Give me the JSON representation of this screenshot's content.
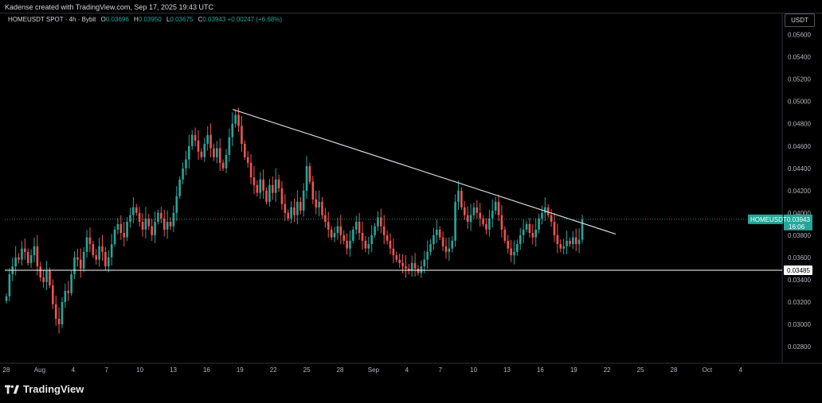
{
  "credit": "Kadense created with TradingView.com, Sep 17, 2025 19:43 UTC",
  "legend": {
    "symbol": "HOMEUSDT SPOT · 4h · Bybit",
    "o_label": "O",
    "o": "0.03696",
    "h_label": "H",
    "h": "0.03950",
    "l_label": "L",
    "l": "0.03675",
    "c_label": "C",
    "c": "0.03943",
    "change": "+0.00247 (+6.68%)"
  },
  "currency": "USDT",
  "brand": "TradingView",
  "colors": {
    "up": "#26a69a",
    "down": "#ef5350",
    "line": "#d1d4dc",
    "badge_bg": "#26a69a"
  },
  "chart_data": {
    "type": "candlestick",
    "symbol": "HOMEUSDT",
    "timeframe": "4h",
    "x_ticks": [
      "28",
      "Aug",
      "4",
      "7",
      "10",
      "13",
      "16",
      "19",
      "22",
      "25",
      "28",
      "Sep",
      "4",
      "7",
      "10",
      "13",
      "16",
      "19",
      "22",
      "25",
      "28",
      "Oct",
      "4"
    ],
    "y_ticks": [
      "0.05600",
      "0.05400",
      "0.05200",
      "0.05000",
      "0.04800",
      "0.04600",
      "0.04400",
      "0.04200",
      "0.04000",
      "0.03800",
      "0.03600",
      "0.03400",
      "0.03200",
      "0.03000",
      "0.02800"
    ],
    "ylim": [
      0.0265,
      0.0579
    ],
    "last_price": {
      "name": "HOMEUSDT",
      "value": "0.03943",
      "countdown": "16:06"
    },
    "support": {
      "value": "0.03485"
    },
    "trendline": {
      "from": [
        "Aug 17",
        0.0493
      ],
      "to": [
        "Sep 21",
        0.0381
      ]
    },
    "approx_closes": [
      0.0325,
      0.0345,
      0.0352,
      0.036,
      0.0358,
      0.0368,
      0.0365,
      0.0355,
      0.0362,
      0.037,
      0.0352,
      0.0342,
      0.0338,
      0.0348,
      0.0335,
      0.0318,
      0.0305,
      0.03,
      0.032,
      0.033,
      0.0328,
      0.0345,
      0.036,
      0.0358,
      0.035,
      0.0365,
      0.0378,
      0.0372,
      0.0362,
      0.0358,
      0.037,
      0.0365,
      0.0352,
      0.036,
      0.0372,
      0.0385,
      0.039,
      0.0382,
      0.0378,
      0.0392,
      0.0398,
      0.0405,
      0.04,
      0.0392,
      0.0385,
      0.0395,
      0.0388,
      0.038,
      0.0392,
      0.04,
      0.0395,
      0.0385,
      0.0392,
      0.0388,
      0.04,
      0.0415,
      0.043,
      0.044,
      0.0448,
      0.046,
      0.047,
      0.0465,
      0.0455,
      0.045,
      0.0462,
      0.047,
      0.0458,
      0.045,
      0.0458,
      0.0445,
      0.044,
      0.0452,
      0.0468,
      0.048,
      0.0488,
      0.0478,
      0.0462,
      0.045,
      0.0445,
      0.0432,
      0.0425,
      0.0418,
      0.043,
      0.042,
      0.041,
      0.0425,
      0.0418,
      0.043,
      0.0422,
      0.0408,
      0.04,
      0.0395,
      0.0405,
      0.0398,
      0.041,
      0.0402,
      0.042,
      0.0442,
      0.0428,
      0.0412,
      0.0405,
      0.041,
      0.0398,
      0.0392,
      0.0385,
      0.0378,
      0.0382,
      0.0388,
      0.038,
      0.0375,
      0.0368,
      0.0375,
      0.0385,
      0.0392,
      0.0382,
      0.0375,
      0.0368,
      0.0372,
      0.038,
      0.0388,
      0.0396,
      0.0388,
      0.038,
      0.0375,
      0.0368,
      0.0362,
      0.0358,
      0.0355,
      0.0352,
      0.035,
      0.0348,
      0.0355,
      0.035,
      0.0346,
      0.0352,
      0.0358,
      0.0365,
      0.0372,
      0.038,
      0.0385,
      0.0378,
      0.037,
      0.0365,
      0.0368,
      0.0375,
      0.041,
      0.042,
      0.0405,
      0.0398,
      0.0392,
      0.0398,
      0.0405,
      0.04,
      0.0395,
      0.039,
      0.0385,
      0.0395,
      0.0402,
      0.041,
      0.0398,
      0.0385,
      0.0375,
      0.0368,
      0.0362,
      0.0365,
      0.0372,
      0.038,
      0.0385,
      0.039,
      0.0382,
      0.0378,
      0.0385,
      0.0395,
      0.04,
      0.0405,
      0.0398,
      0.0392,
      0.038,
      0.0372,
      0.0368,
      0.037,
      0.0375,
      0.0372,
      0.0378,
      0.0372,
      0.0376,
      0.0394
    ],
    "grid": false,
    "legend_position": "top-left"
  }
}
